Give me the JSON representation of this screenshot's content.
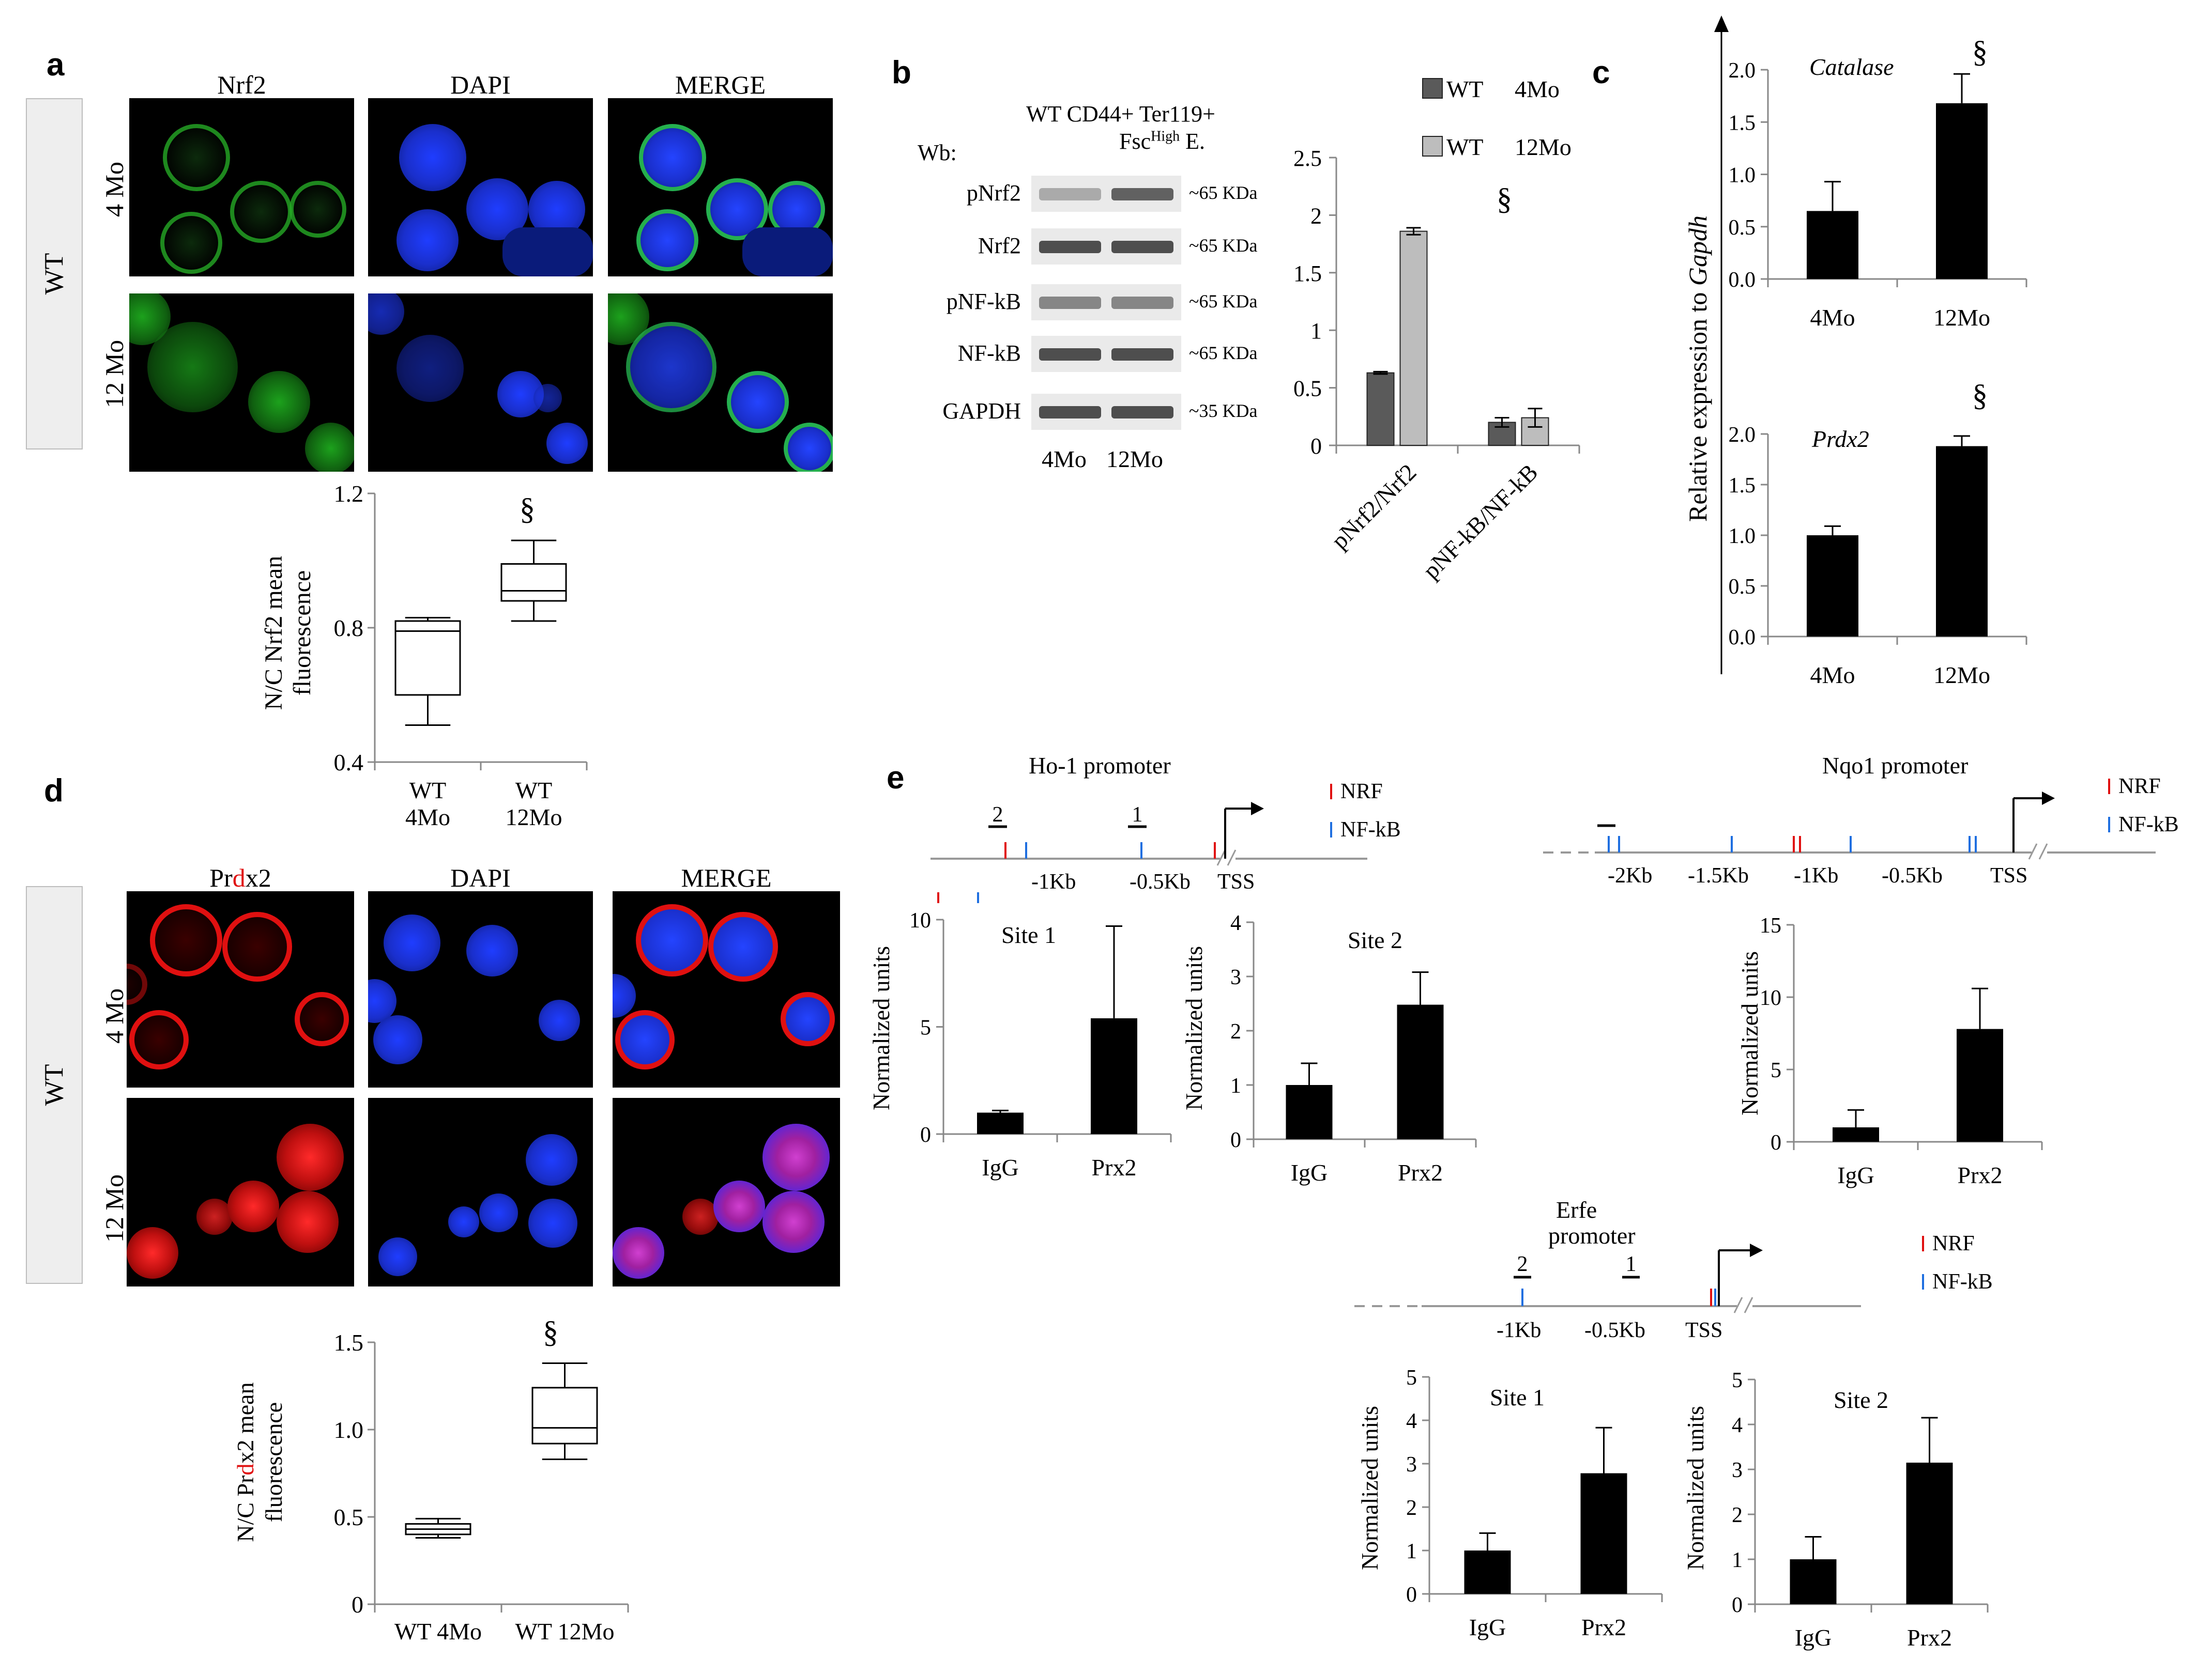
{
  "panels": {
    "a": {
      "label": "a",
      "side_label": "WT",
      "columns": [
        "Nrf2",
        "DAPI",
        "MERGE"
      ],
      "rows": [
        "4 Mo",
        "12 Mo"
      ]
    },
    "b": {
      "label": "b",
      "header_line1": "WT CD44+ Ter119+",
      "header_line2_pre": "Fsc",
      "header_line2_sup": "High",
      "header_line2_post": " E.",
      "wb_label": "Wb:",
      "blots": [
        {
          "name": "pNrf2",
          "size": "~65 KDa"
        },
        {
          "name": "Nrf2",
          "size": "~65 KDa"
        },
        {
          "name": "pNF-kB",
          "size": "~65 KDa"
        },
        {
          "name": "NF-kB",
          "size": "~65 KDa"
        },
        {
          "name": "GAPDH",
          "size": "~35 KDa"
        }
      ],
      "lanes": [
        "4Mo",
        "12Mo"
      ]
    },
    "c": {
      "label": "c",
      "ylabel_pre": "Relative expression to ",
      "ylabel_italic": "Gapdh"
    },
    "d": {
      "label": "d",
      "side_label": "WT",
      "columns": [
        "Prdx2",
        "DAPI",
        "MERGE"
      ],
      "rows": [
        "4 Mo",
        "12 Mo"
      ]
    },
    "e": {
      "label": "e",
      "legend": {
        "nrf": "NRF",
        "nfkb": "NF-kB"
      },
      "ho1": {
        "title": "Ho-1 promoter",
        "ticks": [
          "-1Kb",
          "-0.5Kb",
          "TSS"
        ],
        "sites": [
          "2",
          "1"
        ]
      },
      "nqo1": {
        "title": "Nqo1 promoter",
        "ticks": [
          "-2Kb",
          "-1.5Kb",
          "-1Kb",
          "-0.5Kb",
          "TSS"
        ]
      },
      "erfe": {
        "title_line1": "Erfe",
        "title_line2": "promoter",
        "ticks": [
          "-1Kb",
          "-0.5Kb",
          "TSS"
        ],
        "sites": [
          "2",
          "1"
        ]
      }
    }
  },
  "chart_data": [
    {
      "id": "a_box",
      "type": "box",
      "ylabel": "N/C Nrf2 mean fluorescence",
      "ylim": [
        0.4,
        1.2
      ],
      "yticks": [
        "0.4",
        "0.8",
        "1.2"
      ],
      "categories": [
        "WT 4Mo",
        "WT 12Mo"
      ],
      "boxes": [
        {
          "min": 0.51,
          "q1": 0.6,
          "median": 0.79,
          "q3": 0.82,
          "max": 0.83
        },
        {
          "min": 0.82,
          "q1": 0.88,
          "median": 0.91,
          "q3": 0.99,
          "max": 1.06
        }
      ],
      "annotation": "§"
    },
    {
      "id": "b_bar",
      "type": "bar",
      "categories": [
        "pNrf2/Nrf2",
        "pNF-kB/NF-kB"
      ],
      "series": [
        {
          "name": "WT 4Mo",
          "color": "#5a5a5a",
          "values": [
            0.63,
            0.2
          ],
          "errors": [
            0.01,
            0.04
          ]
        },
        {
          "name": "WT 12Mo",
          "color": "#bdbdbd",
          "values": [
            1.86,
            0.24
          ],
          "errors": [
            0.03,
            0.08
          ]
        }
      ],
      "legend_left": [
        "WT",
        "WT"
      ],
      "legend_right": [
        "4Mo",
        "12Mo"
      ],
      "ylim": [
        0,
        2.5
      ],
      "yticks": [
        "0",
        "0.5",
        "1",
        "1.5",
        "2",
        "2.5"
      ],
      "annotation": "§"
    },
    {
      "id": "c_catalase",
      "type": "bar",
      "title": "Catalase",
      "categories": [
        "4Mo",
        "12Mo"
      ],
      "values": [
        0.65,
        1.68
      ],
      "errors": [
        0.28,
        0.28
      ],
      "ylim": [
        0,
        2.0
      ],
      "yticks": [
        "0.0",
        "0.5",
        "1.0",
        "1.5",
        "2.0"
      ],
      "annotation": "§"
    },
    {
      "id": "c_prdx2",
      "type": "bar",
      "title": "Prdx2",
      "categories": [
        "4Mo",
        "12Mo"
      ],
      "values": [
        1.0,
        1.88
      ],
      "errors": [
        0.09,
        0.1
      ],
      "ylim": [
        0,
        2.0
      ],
      "yticks": [
        "0.0",
        "0.5",
        "1.0",
        "1.5",
        "2.0"
      ],
      "annotation": "§"
    },
    {
      "id": "d_box",
      "type": "box",
      "ylabel_pre": "N/C Pr",
      "ylabel_red": "d",
      "ylabel_post": "x2 mean fluorescence",
      "ylim": [
        0,
        1.5
      ],
      "yticks": [
        "0",
        "0.5",
        "1.0",
        "1.5"
      ],
      "categories": [
        "WT 4Mo",
        "WT 12Mo"
      ],
      "boxes": [
        {
          "min": 0.38,
          "q1": 0.4,
          "median": 0.43,
          "q3": 0.46,
          "max": 0.49
        },
        {
          "min": 0.83,
          "q1": 0.92,
          "median": 1.01,
          "q3": 1.24,
          "max": 1.38
        }
      ],
      "annotation": "§"
    },
    {
      "id": "e_ho1_site1",
      "type": "bar",
      "title": "Site 1",
      "ylabel": "Normalized units",
      "categories": [
        "IgG",
        "Prx2"
      ],
      "values": [
        1.0,
        5.4
      ],
      "errors": [
        0.1,
        4.3
      ],
      "ylim": [
        0,
        10
      ],
      "yticks": [
        "0",
        "5",
        "10"
      ]
    },
    {
      "id": "e_ho1_site2",
      "type": "bar",
      "title": "Site 2",
      "ylabel": "Normalized units",
      "categories": [
        "IgG",
        "Prx2"
      ],
      "values": [
        1.0,
        2.48
      ],
      "errors": [
        0.4,
        0.6
      ],
      "ylim": [
        0,
        4
      ],
      "yticks": [
        "0",
        "1",
        "2",
        "3",
        "4"
      ]
    },
    {
      "id": "e_nqo1",
      "type": "bar",
      "ylabel": "Normalized units",
      "categories": [
        "IgG",
        "Prx2"
      ],
      "values": [
        1.0,
        7.8
      ],
      "errors": [
        1.2,
        2.8
      ],
      "ylim": [
        0,
        15
      ],
      "yticks": [
        "0",
        "5",
        "10",
        "15"
      ]
    },
    {
      "id": "e_erfe_site1",
      "type": "bar",
      "title": "Site 1",
      "ylabel": "Normalized units",
      "categories": [
        "IgG",
        "Prx2"
      ],
      "values": [
        1.0,
        2.78
      ],
      "errors": [
        0.4,
        1.05
      ],
      "ylim": [
        0,
        5
      ],
      "yticks": [
        "0",
        "1",
        "2",
        "3",
        "4",
        "5"
      ]
    },
    {
      "id": "e_erfe_site2",
      "type": "bar",
      "title": "Site 2",
      "ylabel": "Normalized units",
      "categories": [
        "IgG",
        "Prx2"
      ],
      "values": [
        1.0,
        3.15
      ],
      "errors": [
        0.5,
        1.0
      ],
      "ylim": [
        0,
        5
      ],
      "yticks": [
        "0",
        "1",
        "2",
        "3",
        "4",
        "5"
      ]
    }
  ]
}
